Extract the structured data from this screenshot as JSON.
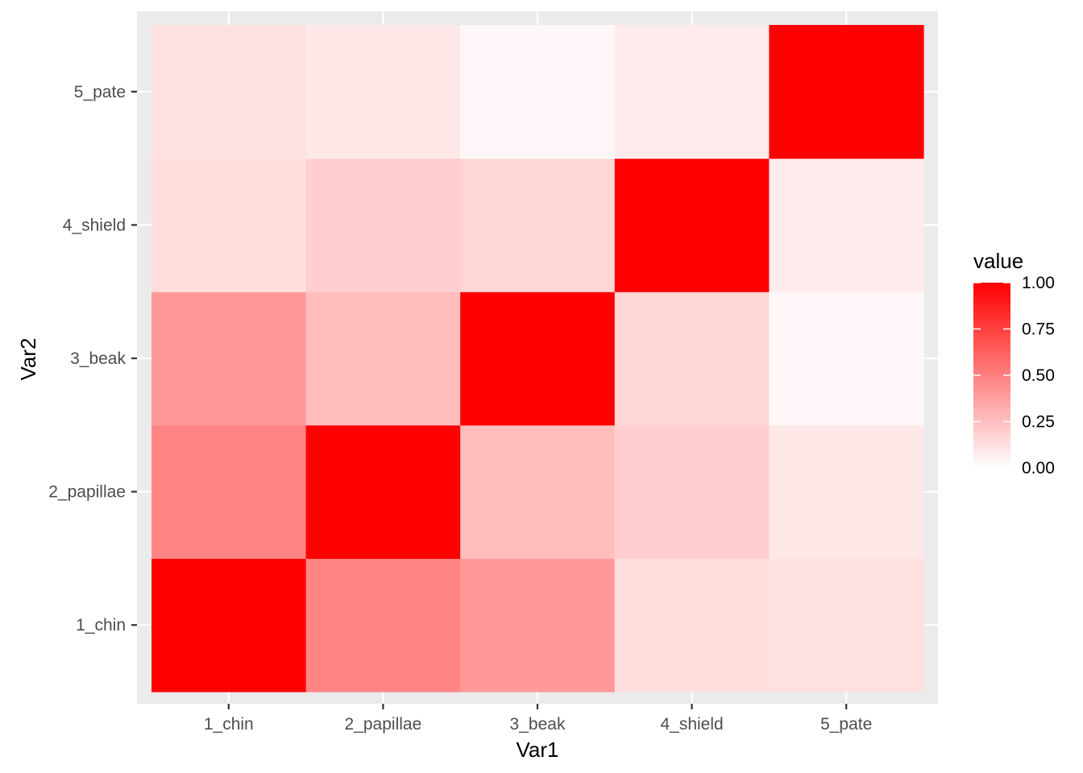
{
  "chart_data": {
    "type": "heatmap",
    "xlabel": "Var1",
    "ylabel": "Var2",
    "x_categories": [
      "1_chin",
      "2_papillae",
      "3_beak",
      "4_shield",
      "5_pate"
    ],
    "y_categories": [
      "1_chin",
      "2_papillae",
      "3_beak",
      "4_shield",
      "5_pate"
    ],
    "values": [
      [
        1.0,
        0.48,
        0.4,
        0.13,
        0.12
      ],
      [
        0.48,
        1.0,
        0.26,
        0.19,
        0.09
      ],
      [
        0.4,
        0.26,
        1.0,
        0.16,
        0.03
      ],
      [
        0.13,
        0.19,
        0.16,
        1.0,
        0.08
      ],
      [
        0.12,
        0.09,
        0.03,
        0.08,
        1.0
      ]
    ],
    "legend": {
      "title": "value",
      "ticks": [
        "0.00",
        "0.25",
        "0.50",
        "0.75",
        "1.00"
      ],
      "range": [
        0,
        1
      ],
      "position": "right"
    },
    "colors": {
      "low": "#ffffff",
      "high": "#ff0000",
      "panel_background": "#ebebeb",
      "grid": "#ffffff"
    },
    "grid": true
  }
}
